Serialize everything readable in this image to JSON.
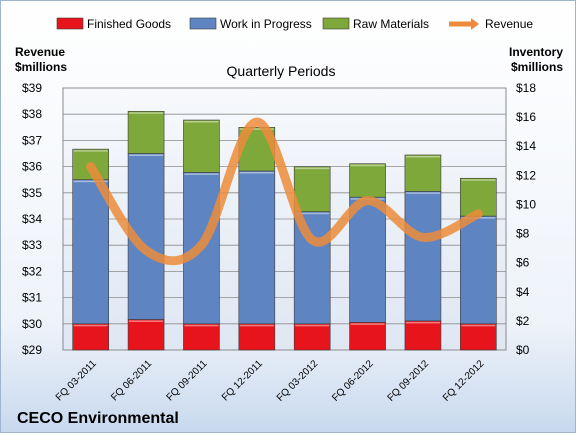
{
  "chart_data": {
    "type": "bar",
    "subtitle": "Quarterly Periods",
    "company": "CECO Environmental",
    "left_axis_title": [
      "Revenue",
      "$millions"
    ],
    "right_axis_title": [
      "Inventory",
      "$millions"
    ],
    "categories": [
      "FQ 03-2011",
      "FQ 06-2011",
      "FQ 09-2011",
      "FQ 12-2011",
      "FQ 03-2012",
      "FQ 06-2012",
      "FQ 09-2012",
      "FQ 12-2012"
    ],
    "left_ylim": [
      29,
      39
    ],
    "left_ticks": [
      "$29",
      "$30",
      "$31",
      "$32",
      "$33",
      "$34",
      "$35",
      "$36",
      "$37",
      "$38",
      "$39"
    ],
    "right_ylim": [
      0,
      18
    ],
    "right_ticks": [
      "$0",
      "$2",
      "$4",
      "$6",
      "$8",
      "$10",
      "$12",
      "$14",
      "$16",
      "$18"
    ],
    "legend_position": "top",
    "grid": true,
    "series": [
      {
        "name": "Finished Goods",
        "kind": "stacked-bar",
        "axis": "right",
        "color": "#e8141c",
        "values": [
          1.8,
          2.1,
          1.8,
          1.8,
          1.8,
          1.9,
          2.0,
          1.8
        ]
      },
      {
        "name": "Work in Progress",
        "kind": "stacked-bar",
        "axis": "right",
        "color": "#5f84c2",
        "values": [
          9.9,
          11.4,
          10.4,
          10.5,
          7.7,
          8.6,
          8.9,
          7.4
        ]
      },
      {
        "name": "Raw Materials",
        "kind": "stacked-bar",
        "axis": "right",
        "color": "#7fa83a",
        "values": [
          2.1,
          2.9,
          3.6,
          3.0,
          3.1,
          2.3,
          2.5,
          2.6
        ]
      },
      {
        "name": "Revenue",
        "kind": "line",
        "axis": "left",
        "color": "#ec8c3a",
        "values": [
          36.0,
          32.8,
          33.0,
          37.7,
          33.2,
          34.7,
          33.3,
          34.2
        ]
      }
    ]
  }
}
